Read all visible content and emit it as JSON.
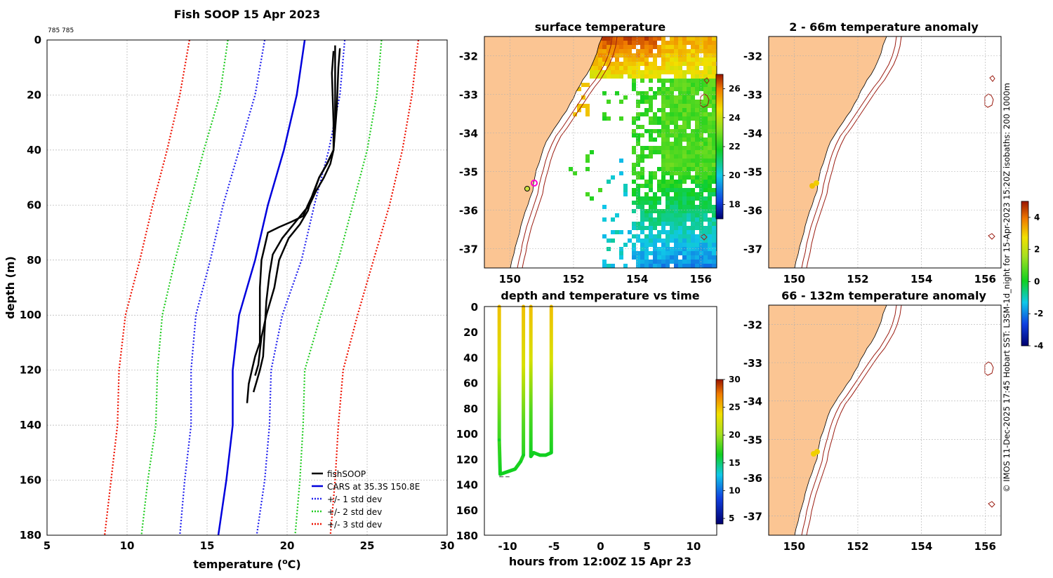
{
  "figure": {
    "copyright_text": "© IMOS 11-Dec-2025 17:45 Hobart SST: L3SM-1d_night for 15-Apr-2023 15:20Z isobaths: 200  1000m"
  },
  "colors": {
    "fish": "#000000",
    "cars": "#0000dd",
    "std1": "#2020ee",
    "std2": "#22cc22",
    "std3": "#ee1100",
    "land": "#fbc593",
    "isobath": "#9b1b10",
    "grid": "#b0b0b0"
  },
  "chart_data": [
    {
      "id": "profile",
      "type": "line",
      "title": "Fish SOOP 15 Apr 2023",
      "corner_note": "785 785",
      "xlabel": "temperature (",
      "xlabel_sup": "o",
      "xlabel_tail": "C)",
      "ylabel": "depth (m)",
      "xlim": [
        5,
        30
      ],
      "ylim": [
        0,
        180
      ],
      "xticks": [
        5,
        10,
        15,
        20,
        25,
        30
      ],
      "yticks": [
        0,
        20,
        40,
        60,
        80,
        100,
        120,
        140,
        160,
        180
      ],
      "y_inverted": true,
      "grid": true,
      "legend_position": "bottom-right",
      "legend": [
        "fishSOOP",
        "CARS at 35.3S 150.8E",
        "+/- 1 std dev",
        "+/- 2 std dev",
        "+/- 3 std dev"
      ],
      "series": [
        {
          "name": "CARS mean",
          "style": "solid",
          "color_key": "cars",
          "points": [
            [
              21.1,
              0
            ],
            [
              20.6,
              20
            ],
            [
              19.8,
              40
            ],
            [
              18.8,
              60
            ],
            [
              18.0,
              80
            ],
            [
              17.0,
              100
            ],
            [
              16.6,
              120
            ],
            [
              16.6,
              140
            ],
            [
              16.2,
              160
            ],
            [
              15.7,
              180
            ]
          ]
        },
        {
          "name": "+1 std dev",
          "style": "dotted",
          "color_key": "std1",
          "points": [
            [
              23.6,
              0
            ],
            [
              23.3,
              20
            ],
            [
              22.6,
              40
            ],
            [
              21.7,
              60
            ],
            [
              20.9,
              80
            ],
            [
              19.7,
              100
            ],
            [
              19.0,
              120
            ],
            [
              18.9,
              140
            ],
            [
              18.6,
              160
            ],
            [
              18.1,
              180
            ]
          ]
        },
        {
          "name": "-1 std dev",
          "style": "dotted",
          "color_key": "std1",
          "points": [
            [
              18.6,
              0
            ],
            [
              18.0,
              20
            ],
            [
              17.0,
              40
            ],
            [
              16.0,
              60
            ],
            [
              15.2,
              80
            ],
            [
              14.3,
              100
            ],
            [
              14.0,
              120
            ],
            [
              14.0,
              140
            ],
            [
              13.6,
              160
            ],
            [
              13.3,
              180
            ]
          ]
        },
        {
          "name": "+2 std dev",
          "style": "dotted",
          "color_key": "std2",
          "points": [
            [
              25.9,
              0
            ],
            [
              25.6,
              20
            ],
            [
              25.0,
              40
            ],
            [
              24.1,
              60
            ],
            [
              23.2,
              80
            ],
            [
              22.1,
              100
            ],
            [
              21.1,
              120
            ],
            [
              21.0,
              140
            ],
            [
              20.8,
              160
            ],
            [
              20.5,
              180
            ]
          ]
        },
        {
          "name": "-2 std dev",
          "style": "dotted",
          "color_key": "std2",
          "points": [
            [
              16.3,
              0
            ],
            [
              15.8,
              20
            ],
            [
              14.8,
              40
            ],
            [
              13.9,
              60
            ],
            [
              13.0,
              80
            ],
            [
              12.2,
              100
            ],
            [
              11.9,
              120
            ],
            [
              11.8,
              140
            ],
            [
              11.3,
              160
            ],
            [
              10.9,
              180
            ]
          ]
        },
        {
          "name": "+3 std dev",
          "style": "dotted",
          "color_key": "std3",
          "points": [
            [
              28.2,
              0
            ],
            [
              27.8,
              20
            ],
            [
              27.2,
              40
            ],
            [
              26.4,
              60
            ],
            [
              25.4,
              80
            ],
            [
              24.4,
              100
            ],
            [
              23.5,
              120
            ],
            [
              23.2,
              140
            ],
            [
              23.0,
              160
            ],
            [
              22.7,
              180
            ]
          ]
        },
        {
          "name": "-3 std dev",
          "style": "dotted",
          "color_key": "std3",
          "points": [
            [
              13.9,
              0
            ],
            [
              13.3,
              20
            ],
            [
              12.5,
              40
            ],
            [
              11.6,
              60
            ],
            [
              10.8,
              80
            ],
            [
              9.9,
              100
            ],
            [
              9.5,
              120
            ],
            [
              9.4,
              140
            ],
            [
              9.0,
              160
            ],
            [
              8.6,
              180
            ]
          ]
        },
        {
          "name": "fishSOOP cast 1",
          "style": "solid",
          "color_key": "fish",
          "points": [
            [
              23.0,
              2
            ],
            [
              23.0,
              10
            ],
            [
              23.0,
              30
            ],
            [
              22.9,
              40
            ],
            [
              22.5,
              45
            ],
            [
              22.0,
              50
            ],
            [
              21.7,
              55
            ],
            [
              21.3,
              60
            ],
            [
              21.0,
              64
            ],
            [
              20.3,
              66
            ],
            [
              19.5,
              68
            ],
            [
              18.8,
              70
            ],
            [
              18.6,
              75
            ],
            [
              18.4,
              80
            ],
            [
              18.3,
              90
            ],
            [
              18.3,
              100
            ],
            [
              18.3,
              110
            ],
            [
              18.0,
              115
            ],
            [
              17.8,
              120
            ],
            [
              17.6,
              125
            ],
            [
              17.5,
              132
            ]
          ]
        },
        {
          "name": "fishSOOP cast 2",
          "style": "solid",
          "color_key": "fish",
          "points": [
            [
              23.3,
              3
            ],
            [
              23.2,
              10
            ],
            [
              23.1,
              25
            ],
            [
              22.9,
              40
            ],
            [
              22.7,
              45
            ],
            [
              22.3,
              50
            ],
            [
              21.8,
              55
            ],
            [
              21.4,
              60
            ],
            [
              21.1,
              62
            ],
            [
              20.4,
              67
            ],
            [
              19.7,
              72
            ],
            [
              19.1,
              78
            ],
            [
              18.9,
              85
            ],
            [
              18.7,
              95
            ],
            [
              18.6,
              105
            ],
            [
              18.5,
              115
            ],
            [
              18.3,
              120
            ],
            [
              18.1,
              124
            ],
            [
              17.9,
              128
            ]
          ]
        },
        {
          "name": "fishSOOP cast 3",
          "style": "solid",
          "color_key": "fish",
          "points": [
            [
              22.9,
              4
            ],
            [
              22.8,
              12
            ],
            [
              22.9,
              30
            ],
            [
              22.9,
              40
            ],
            [
              22.4,
              46
            ],
            [
              22.0,
              50
            ],
            [
              21.6,
              56
            ],
            [
              21.3,
              62
            ],
            [
              20.8,
              67
            ],
            [
              20.1,
              72
            ],
            [
              19.5,
              80
            ],
            [
              19.2,
              90
            ],
            [
              18.7,
              100
            ],
            [
              18.4,
              108
            ],
            [
              18.3,
              113
            ],
            [
              18.2,
              118
            ],
            [
              18.0,
              122
            ]
          ]
        }
      ]
    },
    {
      "id": "surface_temp",
      "type": "heatmap",
      "title": "surface temperature",
      "xlim": [
        149.2,
        156.5
      ],
      "ylim": [
        -37.5,
        -31.5
      ],
      "xticks": [
        150,
        152,
        154,
        156
      ],
      "yticks": [
        -32,
        -33,
        -34,
        -35,
        -36,
        -37
      ],
      "colorbar_range": [
        17,
        27
      ],
      "colorbar_ticks": [
        18,
        20,
        22,
        24,
        26
      ]
    },
    {
      "id": "depth_time",
      "type": "scatter",
      "title": "depth and temperature vs time",
      "xlabel": "hours from 12:00Z 15 Apr 23",
      "xlim": [
        -12.5,
        12.5
      ],
      "ylim": [
        0,
        180
      ],
      "xticks": [
        -10,
        -5,
        0,
        5,
        10
      ],
      "yticks": [
        0,
        20,
        40,
        60,
        80,
        100,
        120,
        140,
        160,
        180
      ],
      "colorbar_range": [
        4,
        30
      ],
      "colorbar_ticks": [
        5,
        10,
        15,
        20,
        25,
        30
      ],
      "segments": [
        [
          [
            -10.9,
            0
          ],
          [
            -10.9,
            105
          ],
          [
            -10.8,
            132
          ],
          [
            -9.2,
            128
          ],
          [
            -8.6,
            122
          ],
          [
            -8.3,
            117
          ],
          [
            -8.3,
            0
          ]
        ],
        [
          [
            -7.5,
            0
          ],
          [
            -7.5,
            118
          ],
          [
            -7.2,
            115
          ],
          [
            -6.5,
            117
          ],
          [
            -5.9,
            117
          ],
          [
            -5.3,
            115
          ],
          [
            -5.3,
            0
          ]
        ]
      ],
      "min_depth_marks": [
        [
          -10.9,
          134
        ],
        [
          -9.8,
          134
        ]
      ]
    },
    {
      "id": "anomaly_shallow",
      "type": "heatmap",
      "title": "2 - 66m temperature anomaly",
      "xlim": [
        149.2,
        156.5
      ],
      "ylim": [
        -37.5,
        -31.5
      ],
      "xticks": [
        150,
        152,
        154,
        156
      ],
      "yticks": [
        -32,
        -33,
        -34,
        -35,
        -36,
        -37
      ],
      "colorbar_range": [
        -4,
        5
      ],
      "colorbar_ticks": [
        -4,
        -2,
        0,
        2,
        4
      ]
    },
    {
      "id": "anomaly_deep",
      "type": "heatmap",
      "title": "66 - 132m temperature anomaly",
      "xlim": [
        149.2,
        156.5
      ],
      "ylim": [
        -37.5,
        -31.5
      ],
      "xticks": [
        150,
        152,
        154,
        156
      ],
      "yticks": [
        -32,
        -33,
        -34,
        -35,
        -36,
        -37
      ]
    }
  ]
}
